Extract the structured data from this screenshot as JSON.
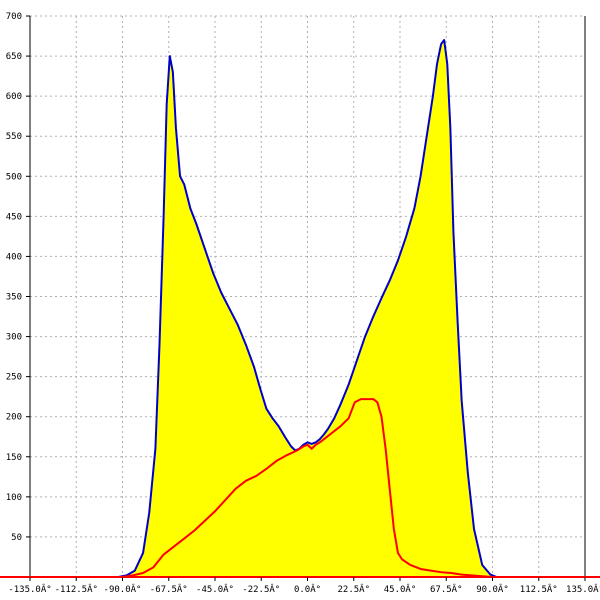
{
  "chart_data": {
    "type": "area",
    "title": "",
    "xlabel": "",
    "ylabel": "",
    "xlim": [
      -135,
      135
    ],
    "ylim": [
      0,
      700
    ],
    "grid": true,
    "x_ticks": [
      -135,
      -112.5,
      -90,
      -67.5,
      -45,
      -22.5,
      0,
      22.5,
      45,
      67.5,
      90,
      112.5,
      135
    ],
    "x_tick_labels": [
      "-135.0Â°",
      "-112.5Â°",
      "-90.0Â°",
      "-67.5Â°",
      "-45.0Â°",
      "-22.5Â°",
      "0.0Â°",
      "22.5Â°",
      "45.0Â°",
      "67.5Â°",
      "90.0Â°",
      "112.5Â°",
      "135.0Â°"
    ],
    "y_ticks": [
      50,
      100,
      150,
      200,
      250,
      300,
      350,
      400,
      450,
      500,
      550,
      600,
      650,
      700
    ],
    "y_tick_labels": [
      "50",
      "100",
      "150",
      "200",
      "250",
      "300",
      "350",
      "400",
      "450",
      "500",
      "550",
      "600",
      "650",
      "700"
    ],
    "series": [
      {
        "fill": "#ffff00",
        "color": "#0000cc",
        "x": [
          -135,
          -92,
          -88,
          -84,
          -80,
          -77,
          -74,
          -72,
          -70,
          -68.5,
          -67,
          -65.5,
          -64,
          -62,
          -60,
          -57,
          -54,
          -50,
          -46,
          -42,
          -38,
          -34,
          -30,
          -26,
          -23,
          -20,
          -17,
          -14,
          -11,
          -8,
          -6,
          -4,
          -2,
          0,
          2,
          4,
          6,
          8,
          10,
          13,
          16,
          20,
          24,
          28,
          32,
          36,
          40,
          44,
          48,
          52,
          55,
          58,
          61,
          63,
          65,
          66.5,
          68,
          69.5,
          71,
          73,
          75,
          78,
          81,
          85,
          89,
          92,
          135
        ],
        "y": [
          0,
          0,
          2,
          8,
          30,
          80,
          160,
          290,
          450,
          590,
          650,
          630,
          560,
          500,
          490,
          460,
          440,
          410,
          380,
          355,
          335,
          315,
          290,
          262,
          235,
          210,
          198,
          188,
          175,
          163,
          158,
          160,
          165,
          168,
          166,
          168,
          172,
          178,
          185,
          198,
          215,
          240,
          270,
          300,
          325,
          348,
          370,
          395,
          425,
          460,
          500,
          550,
          600,
          640,
          665,
          670,
          640,
          560,
          430,
          320,
          220,
          130,
          60,
          15,
          3,
          0,
          0
        ]
      },
      {
        "color": "#ff0000",
        "x": [
          -135,
          -90,
          -85,
          -80,
          -75,
          -70,
          -65,
          -60,
          -55,
          -50,
          -45,
          -40,
          -35,
          -30,
          -25,
          -20,
          -15,
          -10,
          -5,
          -2,
          0,
          2,
          4,
          6,
          8,
          12,
          16,
          20,
          23,
          26,
          29,
          32,
          34,
          36,
          38,
          40,
          42,
          44,
          46,
          50,
          55,
          60,
          65,
          70,
          75,
          80,
          85,
          90,
          135
        ],
        "y": [
          0,
          0,
          2,
          5,
          12,
          28,
          38,
          48,
          58,
          70,
          82,
          96,
          110,
          120,
          126,
          135,
          145,
          152,
          158,
          163,
          165,
          160,
          165,
          168,
          172,
          180,
          188,
          198,
          218,
          222,
          222,
          222,
          218,
          200,
          160,
          110,
          60,
          30,
          22,
          15,
          10,
          8,
          6,
          5,
          3,
          2,
          1,
          0,
          0
        ]
      }
    ]
  }
}
